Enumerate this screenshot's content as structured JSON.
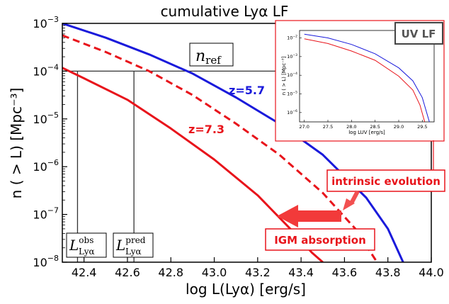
{
  "chart_data": {
    "type": "line",
    "title": "cumulative Lyα LF",
    "xlabel": "log L(Lyα) [erg/s]",
    "ylabel": "n ( > L) [Mpc⁻³]",
    "xlim": [
      42.3,
      44.0
    ],
    "ylim_log10": [
      -8,
      -3
    ],
    "yscale": "log",
    "grid": false,
    "x_ticks": [
      "42.4",
      "42.6",
      "42.8",
      "43.0",
      "43.2",
      "43.4",
      "43.6",
      "43.8",
      "44.0"
    ],
    "y_tick_exponents": [
      "-3",
      "-4",
      "-5",
      "-6",
      "-7",
      "-8"
    ],
    "y_tick_base": "10",
    "series": [
      {
        "name": "z=5.7",
        "color": "#1a1adb",
        "style": "solid",
        "x": [
          42.3,
          42.5,
          42.7,
          42.9,
          43.1,
          43.3,
          43.5,
          43.7,
          43.8,
          43.87
        ],
        "log10_y": [
          -3.0,
          -3.3,
          -3.65,
          -4.05,
          -4.55,
          -5.1,
          -5.75,
          -6.65,
          -7.3,
          -8.0
        ]
      },
      {
        "name": "",
        "color": "#e8141b",
        "style": "dashed",
        "x": [
          42.3,
          42.5,
          42.7,
          42.9,
          43.1,
          43.3,
          43.5,
          43.65,
          43.75
        ],
        "log10_y": [
          -3.25,
          -3.6,
          -4.0,
          -4.5,
          -5.1,
          -5.75,
          -6.55,
          -7.3,
          -8.0
        ]
      },
      {
        "name": "z=7.3",
        "color": "#e8141b",
        "style": "solid",
        "x": [
          42.3,
          42.4,
          42.6,
          42.8,
          43.0,
          43.2,
          43.35,
          43.45,
          43.5
        ],
        "log10_y": [
          -3.93,
          -4.15,
          -4.6,
          -5.2,
          -5.85,
          -6.6,
          -7.3,
          -7.8,
          -8.0
        ]
      }
    ],
    "n_ref_label": "n",
    "n_ref_sub": "ref",
    "n_ref_log10": -4.0,
    "lobs_label": "L",
    "lobs_sup": "obs",
    "lobs_sub": "Lyα",
    "lobs_x": 42.37,
    "lpred_label": "L",
    "lpred_sup": "pred",
    "lpred_sub": "Lyα",
    "lpred_x": 42.63,
    "annotations": {
      "intrinsic": "intrinsic evolution",
      "igm": "IGM absorption"
    },
    "inset": {
      "title": "UV LF",
      "xlabel": "log LUV [erg/s]",
      "ylabel": "n ( > L) [Mpc⁻³]",
      "xlim": [
        26.9,
        29.75
      ],
      "x_ticks": [
        "27.0",
        "27.5",
        "28.0",
        "28.5",
        "29.0",
        "29.5"
      ],
      "y_tick_exponents": [
        "-2",
        "-3",
        "-4",
        "-5",
        "-6"
      ],
      "y_tick_base": "10",
      "series": [
        {
          "color": "#1a1adb",
          "x": [
            27.0,
            27.5,
            28.0,
            28.5,
            29.0,
            29.3,
            29.5,
            29.65
          ],
          "log10_y": [
            -1.8,
            -2.0,
            -2.35,
            -2.85,
            -3.6,
            -4.3,
            -5.2,
            -6.5
          ]
        },
        {
          "color": "#e8141b",
          "x": [
            27.0,
            27.5,
            28.0,
            28.5,
            29.0,
            29.3,
            29.45,
            29.55
          ],
          "log10_y": [
            -2.05,
            -2.3,
            -2.7,
            -3.2,
            -4.05,
            -4.8,
            -5.6,
            -6.5
          ]
        }
      ]
    }
  }
}
